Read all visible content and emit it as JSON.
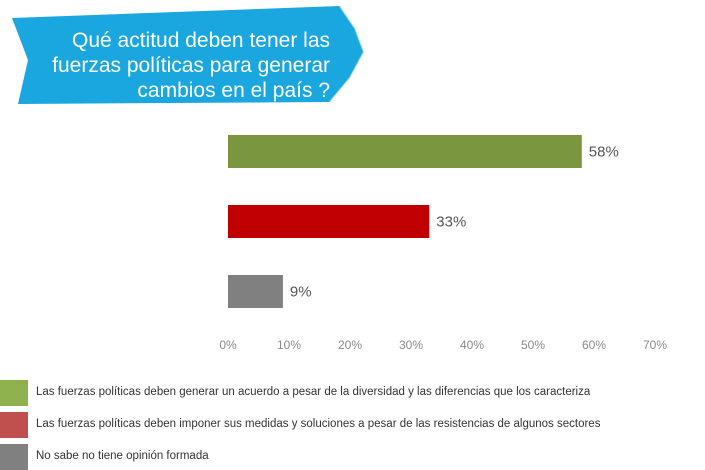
{
  "banner": {
    "lines": [
      "Qué actitud deben tener las",
      "fuerzas políticas para generar",
      "cambios en el país ?"
    ],
    "color": "#1aa7df"
  },
  "chart_data": {
    "type": "bar",
    "orientation": "horizontal",
    "categories": [
      "Las fuerzas políticas deben generar un acuerdo a pesar de la diversidad y las diferencias que los caracteriza",
      "Las fuerzas políticas deben imponer sus medidas y soluciones a pesar de las resistencias de algunos sectores",
      "No sabe no tiene opinión formada"
    ],
    "values": [
      58,
      33,
      9
    ],
    "data_labels": [
      "58%",
      "33%",
      "9%"
    ],
    "colors": [
      "#7a963e",
      "#c00000",
      "#808080"
    ],
    "xlim": [
      0,
      70
    ],
    "xticks": [
      "0%",
      "10%",
      "20%",
      "30%",
      "40%",
      "50%",
      "60%",
      "70%"
    ],
    "grid": false,
    "legend_position": "bottom"
  },
  "legend": {
    "items": [
      {
        "label": "Las fuerzas políticas deben generar un acuerdo a pesar de la diversidad y las diferencias que los caracteriza",
        "color": "#8fb24f"
      },
      {
        "label": "Las fuerzas políticas deben imponer sus medidas y soluciones a pesar de las resistencias de algunos sectores",
        "color": "#c0504d"
      },
      {
        "label": "No sabe no tiene opinión formada",
        "color": "#808080"
      }
    ]
  }
}
